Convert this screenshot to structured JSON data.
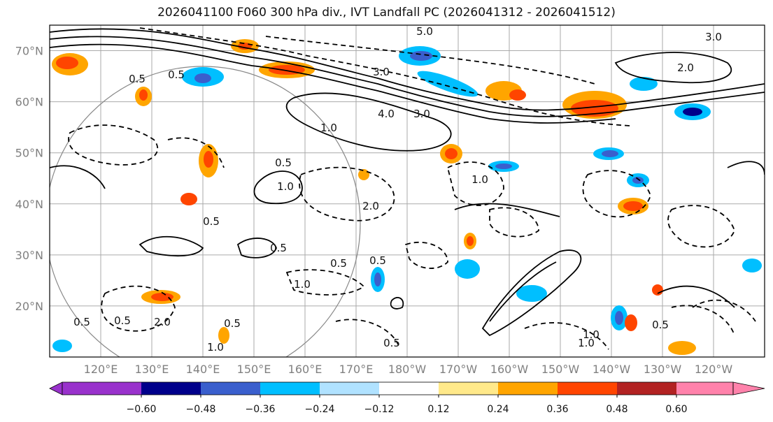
{
  "title": "2026041100 F060 300 hPa div., IVT Landfall PC (2026041312 - 2026041512)",
  "map": {
    "lat_labels": [
      "70°N",
      "60°N",
      "50°N",
      "40°N",
      "30°N",
      "20°N"
    ],
    "lon_labels": [
      "120°E",
      "130°E",
      "140°E",
      "150°E",
      "160°E",
      "170°E",
      "180°W",
      "170°W",
      "160°W",
      "150°W",
      "140°W",
      "130°W",
      "120°W"
    ],
    "extent": {
      "lon_min": 110,
      "lon_max": 250,
      "lat_min": 10,
      "lat_max": 75
    },
    "grid": true,
    "contour_labels": [
      "5.0",
      "3.0",
      "4.0",
      "3.0",
      "1.0",
      "0.5",
      "1.0",
      "0.5",
      "0.5",
      "0.5",
      "0.5",
      "1.0",
      "2.0",
      "0.5",
      "0.5",
      "0.5",
      "1.0",
      "0.5",
      "2.0",
      "1.0",
      "1.0",
      "1.0",
      "0.5",
      "0.5",
      "0.5",
      "3.0",
      "2.0"
    ]
  },
  "colorbar": {
    "ticks": [
      "−0.60",
      "−0.48",
      "−0.36",
      "−0.24",
      "−0.12",
      "0.12",
      "0.24",
      "0.36",
      "0.48",
      "0.60"
    ],
    "colors": [
      "#9932cc",
      "#00008b",
      "#3a5fcd",
      "#00bfff",
      "#b0e2ff",
      "#ffffff",
      "#ffe98a",
      "#ffa500",
      "#ff4500",
      "#b22222",
      "#ff82ab"
    ]
  }
}
